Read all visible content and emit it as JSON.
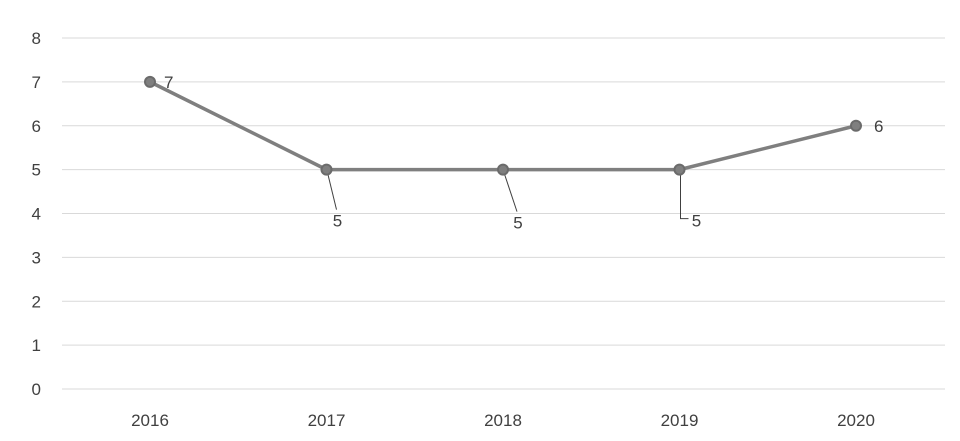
{
  "chart_data": {
    "type": "line",
    "categories": [
      "2016",
      "2017",
      "2018",
      "2019",
      "2020"
    ],
    "series": [
      {
        "values": [
          7,
          5,
          5,
          5,
          6
        ],
        "color": "#7f7f7f"
      }
    ],
    "data_labels": [
      "7",
      "5",
      "5",
      "5",
      "6"
    ],
    "y_ticks": [
      "0",
      "1",
      "2",
      "3",
      "4",
      "5",
      "6",
      "7",
      "8"
    ],
    "ylim": [
      0,
      8
    ],
    "grid": true,
    "legend": "none",
    "title": "",
    "xlabel": "",
    "ylabel": ""
  }
}
